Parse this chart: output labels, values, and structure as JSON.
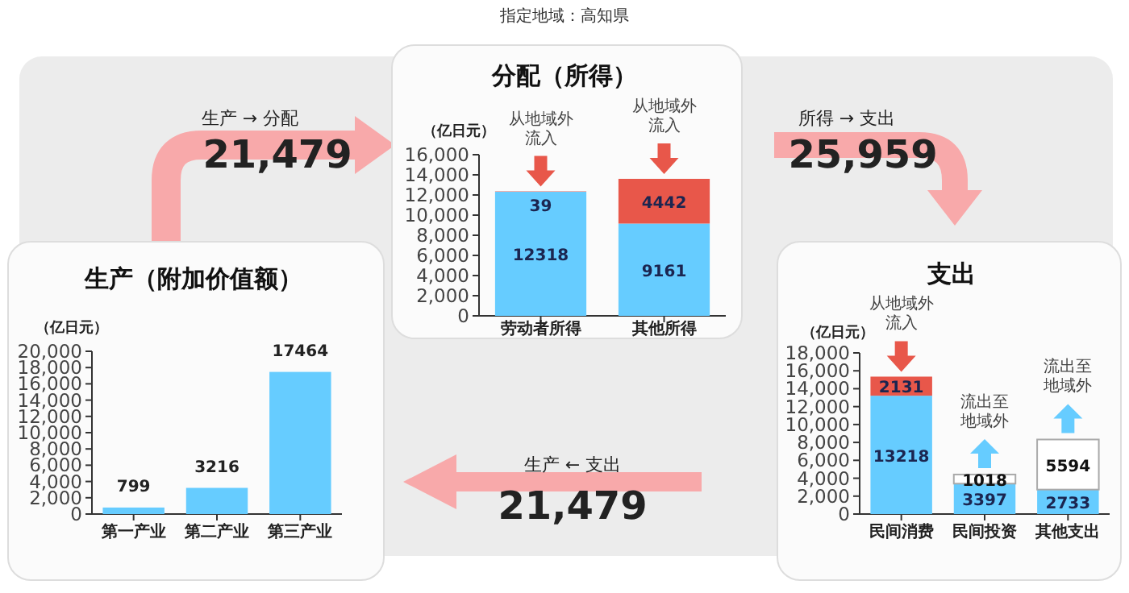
{
  "chart_data": [
    {
      "type": "other",
      "title": "指定地域：高知県",
      "annotations": [
        "生产 → 分配",
        "21,479",
        "所得 → 支出",
        "25,959",
        "生产 ← 支出",
        "21,479"
      ]
    },
    {
      "type": "bar",
      "title": "生产（附加价值额）",
      "ylabel": "（亿日元）",
      "categories": [
        "第一产业",
        "第二产业",
        "第三产业"
      ],
      "values": [
        799,
        3216,
        17464
      ],
      "color": "#66ccff",
      "ylim": [
        0,
        20000
      ],
      "yticks": [
        {
          "value": 0,
          "label": "0"
        },
        {
          "value": 2000,
          "label": "2,000"
        },
        {
          "value": 4000,
          "label": "4,000"
        },
        {
          "value": 6000,
          "label": "6,000"
        },
        {
          "value": 8000,
          "label": "8,000"
        },
        {
          "value": 10000,
          "label": "10,000"
        },
        {
          "value": 12000,
          "label": "12,000"
        },
        {
          "value": 14000,
          "label": "14,000"
        },
        {
          "value": 16000,
          "label": "16,000"
        },
        {
          "value": 18000,
          "label": "18,000"
        },
        {
          "value": 20000,
          "label": "20,000"
        }
      ],
      "data_labels": true
    },
    {
      "type": "bar",
      "stacked": true,
      "title": "分配（所得）",
      "ylabel": "（亿日元）",
      "categories": [
        "劳动者所得",
        "其他所得"
      ],
      "series": [
        {
          "color": "#66ccff",
          "values": [
            12318,
            9161
          ]
        },
        {
          "color": "#e8574a",
          "values": [
            39,
            4442
          ]
        }
      ],
      "ylim": [
        0,
        16000
      ],
      "yticks": [
        {
          "value": 0,
          "label": "0"
        },
        {
          "value": 2000,
          "label": "2,000"
        },
        {
          "value": 4000,
          "label": "4,000"
        },
        {
          "value": 6000,
          "label": "6,000"
        },
        {
          "value": 8000,
          "label": "8,000"
        },
        {
          "value": 10000,
          "label": "10,000"
        },
        {
          "value": 12000,
          "label": "12,000"
        },
        {
          "value": 14000,
          "label": "14,000"
        },
        {
          "value": 16000,
          "label": "16,000"
        }
      ],
      "data_labels": true,
      "annotations": [
        {
          "text": "从地域外流入",
          "x": "劳动者所得",
          "y": 12357
        },
        {
          "text": "从地域外流入",
          "x": "其他所得",
          "y": 13603
        }
      ]
    },
    {
      "type": "bar",
      "stacked": true,
      "title": "支出",
      "ylabel": "（亿日元）",
      "categories": [
        "民间消费",
        "民间投资",
        "其他支出"
      ],
      "series": [
        {
          "color": "#66ccff",
          "values": [
            13218,
            3397,
            2733
          ]
        },
        {
          "color": "#e8574a",
          "values": [
            2131,
            null,
            null
          ]
        },
        {
          "color": "#ffffff",
          "values": [
            null,
            1018,
            5594
          ]
        }
      ],
      "ylim": [
        0,
        18000
      ],
      "yticks": [
        {
          "value": 0,
          "label": "0"
        },
        {
          "value": 2000,
          "label": "2,000"
        },
        {
          "value": 4000,
          "label": "4,000"
        },
        {
          "value": 6000,
          "label": "6,000"
        },
        {
          "value": 8000,
          "label": "8,000"
        },
        {
          "value": 10000,
          "label": "10,000"
        },
        {
          "value": 12000,
          "label": "12,000"
        },
        {
          "value": 14000,
          "label": "14,000"
        },
        {
          "value": 16000,
          "label": "16,000"
        },
        {
          "value": 18000,
          "label": "18,000"
        }
      ],
      "data_labels": true,
      "annotations": [
        {
          "text": "从地域外流入",
          "x": "民间消费",
          "y": 15349
        },
        {
          "text": "流出至地域外",
          "x": "民间投资",
          "y": 4415
        },
        {
          "text": "流出至地域外",
          "x": "其他支出",
          "y": 8327
        }
      ]
    }
  ]
}
